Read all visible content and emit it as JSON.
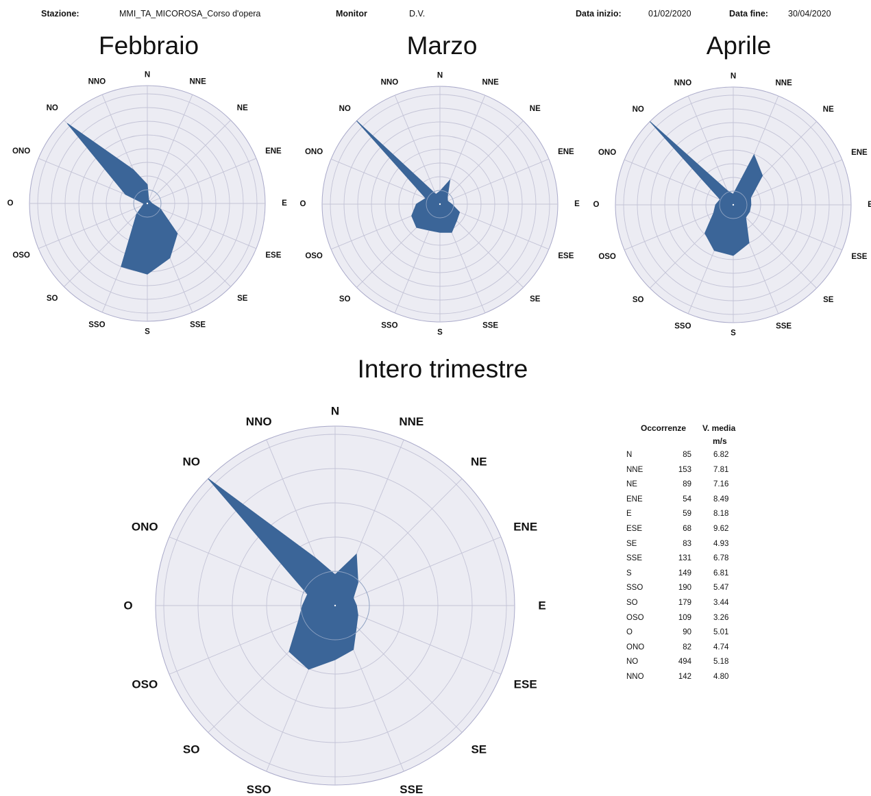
{
  "header": {
    "stazione_label": "Stazione:",
    "stazione_value": "MMI_TA_MICOROSA_Corso d'opera",
    "monitor_label": "Monitor",
    "monitor_value": "D.V.",
    "data_inizio_label": "Data inizio:",
    "data_inizio_value": "01/02/2020",
    "data_fine_label": "Data fine:",
    "data_fine_value": "30/04/2020"
  },
  "chart_data": [
    {
      "type": "radar",
      "title": "Febbraio",
      "directions": [
        "N",
        "NNE",
        "NE",
        "ENE",
        "E",
        "ESE",
        "SE",
        "SSE",
        "S",
        "SSO",
        "SO",
        "OSO",
        "O",
        "ONO",
        "NO",
        "NNO"
      ],
      "values": [
        0.16,
        0.03,
        0.03,
        0.03,
        0.04,
        0.12,
        0.36,
        0.5,
        0.6,
        0.58,
        0.13,
        0.04,
        0.03,
        0.2,
        0.96,
        0.31
      ],
      "grid": true,
      "fill_color": "#3b6598"
    },
    {
      "type": "radar",
      "title": "Marzo",
      "directions": [
        "N",
        "NNE",
        "NE",
        "ENE",
        "E",
        "ESE",
        "SE",
        "SSE",
        "S",
        "SSO",
        "SO",
        "OSO",
        "O",
        "ONO",
        "NO",
        "NNO"
      ],
      "values": [
        0.11,
        0.22,
        0.09,
        0.07,
        0.1,
        0.18,
        0.2,
        0.26,
        0.24,
        0.24,
        0.28,
        0.26,
        0.2,
        0.13,
        1.0,
        0.09
      ],
      "grid": true,
      "fill_color": "#3b6598"
    },
    {
      "type": "radar",
      "title": "Aprile",
      "directions": [
        "N",
        "NNE",
        "NE",
        "ENE",
        "E",
        "ESE",
        "SE",
        "SSE",
        "S",
        "SSO",
        "SO",
        "OSO",
        "O",
        "ONO",
        "NO",
        "NNO"
      ],
      "values": [
        0.09,
        0.46,
        0.35,
        0.16,
        0.15,
        0.15,
        0.15,
        0.35,
        0.43,
        0.42,
        0.34,
        0.18,
        0.15,
        0.12,
        1.0,
        0.13
      ],
      "grid": true,
      "fill_color": "#3b6598"
    },
    {
      "type": "radar",
      "title": "Intero trimestre",
      "directions": [
        "N",
        "NNE",
        "NE",
        "ENE",
        "E",
        "ESE",
        "SE",
        "SSE",
        "S",
        "SSO",
        "SO",
        "OSO",
        "O",
        "ONO",
        "NO",
        "NNO"
      ],
      "values": [
        85,
        153,
        89,
        54,
        59,
        68,
        83,
        131,
        149,
        190,
        179,
        109,
        90,
        82,
        494,
        142
      ],
      "rmax": 494,
      "grid": true,
      "fill_color": "#3b6598"
    }
  ],
  "table": {
    "header_occ": "Occorrenze",
    "header_vel": "V. media",
    "header_unit": "m/s",
    "rows": [
      {
        "dir": "N",
        "occ": "85",
        "vel": "6.82"
      },
      {
        "dir": "NNE",
        "occ": "153",
        "vel": "7.81"
      },
      {
        "dir": "NE",
        "occ": "89",
        "vel": "7.16"
      },
      {
        "dir": "ENE",
        "occ": "54",
        "vel": "8.49"
      },
      {
        "dir": "E",
        "occ": "59",
        "vel": "8.18"
      },
      {
        "dir": "ESE",
        "occ": "68",
        "vel": "9.62"
      },
      {
        "dir": "SE",
        "occ": "83",
        "vel": "4.93"
      },
      {
        "dir": "SSE",
        "occ": "131",
        "vel": "6.78"
      },
      {
        "dir": "S",
        "occ": "149",
        "vel": "6.81"
      },
      {
        "dir": "SSO",
        "occ": "190",
        "vel": "5.47"
      },
      {
        "dir": "SO",
        "occ": "179",
        "vel": "3.44"
      },
      {
        "dir": "OSO",
        "occ": "109",
        "vel": "3.26"
      },
      {
        "dir": "O",
        "occ": "90",
        "vel": "5.01"
      },
      {
        "dir": "ONO",
        "occ": "82",
        "vel": "4.74"
      },
      {
        "dir": "NO",
        "occ": "494",
        "vel": "5.18"
      },
      {
        "dir": "NNO",
        "occ": "142",
        "vel": "4.80"
      }
    ]
  }
}
